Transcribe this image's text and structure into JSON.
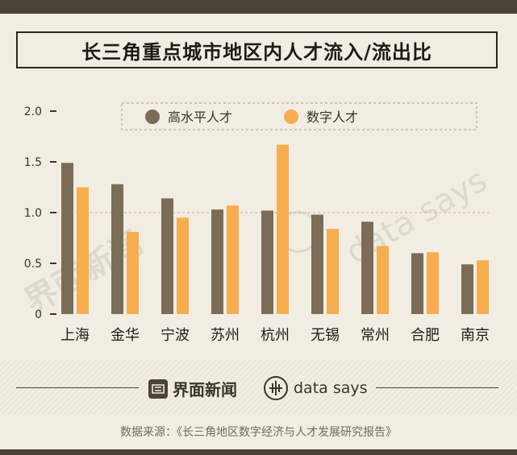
{
  "title": "长三角重点城市地区内人才流入/流出比",
  "source": "数据来源：《长三角地区数字经济与人才发展研究报告》",
  "brand": {
    "name": "界面新闻",
    "partner": "data says"
  },
  "chart_data": {
    "type": "bar",
    "title": "长三角重点城市地区内人才流入/流出比",
    "xlabel": "",
    "ylabel": "",
    "categories": [
      "上海",
      "金华",
      "宁波",
      "苏州",
      "杭州",
      "无锡",
      "常州",
      "合肥",
      "南京"
    ],
    "series": [
      {
        "name": "高水平人才",
        "color": "#7a6c56",
        "values": [
          1.49,
          1.28,
          1.14,
          1.03,
          1.02,
          0.98,
          0.91,
          0.6,
          0.49
        ]
      },
      {
        "name": "数字人才",
        "color": "#f8ad4e",
        "values": [
          1.25,
          0.81,
          0.95,
          1.07,
          1.67,
          0.84,
          0.67,
          0.61,
          0.53
        ]
      }
    ],
    "ylim": [
      0,
      2.0
    ],
    "yticks": [
      "0",
      "0.5",
      "1.0",
      "1.5",
      "2.0"
    ],
    "reference_line": 1.0,
    "legend_position": "top",
    "grid": false
  }
}
